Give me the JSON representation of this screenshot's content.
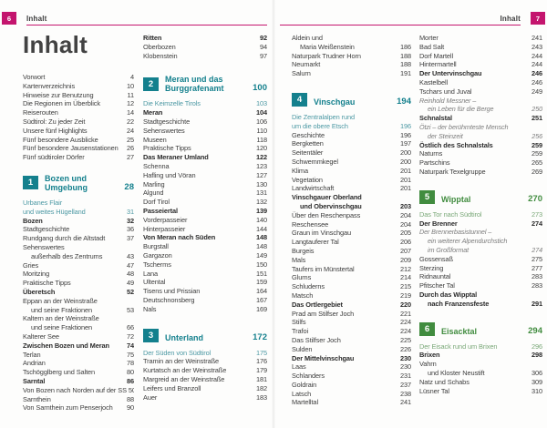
{
  "title": "Inhalt",
  "header_left": {
    "page_number": "6",
    "label": "Inhalt"
  },
  "header_right": {
    "page_number": "7",
    "label": "Inhalt"
  },
  "colors": {
    "accent_pink": "#c4156e",
    "teal": "#14808d",
    "teal_light": "#4d99a4",
    "green": "#418c3f",
    "green_light": "#7aa878",
    "text": "#3d3d3d"
  },
  "columns": {
    "l1": [
      {
        "k": "title"
      },
      {
        "k": "e",
        "t": [
          "Vorwort"
        ],
        "p": "4"
      },
      {
        "k": "e",
        "t": [
          "Kartenverzeichnis"
        ],
        "p": "10"
      },
      {
        "k": "e",
        "t": [
          "Hinweise zur Benutzung"
        ],
        "p": "11"
      },
      {
        "k": "e",
        "t": [
          "Die Regionen im Überblick"
        ],
        "p": "12"
      },
      {
        "k": "e",
        "t": [
          "Reiserouten"
        ],
        "p": "14"
      },
      {
        "k": "e",
        "t": [
          "Südtirol: Zu jeder Zeit"
        ],
        "p": "22"
      },
      {
        "k": "e",
        "t": [
          "Unsere fünf Highlights"
        ],
        "p": "24"
      },
      {
        "k": "e",
        "t": [
          "Fünf besondere Ausblicke"
        ],
        "p": "25"
      },
      {
        "k": "e",
        "t": [
          "Fünf besondere Jausenstationen"
        ],
        "p": "26"
      },
      {
        "k": "e",
        "t": [
          "Fünf südtiroler Dörfer"
        ],
        "p": "27"
      },
      {
        "k": "gap",
        "h": 13
      },
      {
        "k": "sec",
        "n": "1",
        "t": [
          "Bozen und",
          "Umgebung"
        ],
        "p": "28",
        "c": "t"
      },
      {
        "k": "e",
        "t": [
          "Urbanes Flair",
          "und weites Hügelland"
        ],
        "p": "31",
        "s": "l"
      },
      {
        "k": "e",
        "t": [
          "Bozen"
        ],
        "p": "32",
        "s": "b"
      },
      {
        "k": "e",
        "t": [
          "Stadtgeschichte"
        ],
        "p": "36"
      },
      {
        "k": "e",
        "t": [
          "Rundgang durch die Altstadt"
        ],
        "p": "37"
      },
      {
        "k": "e",
        "t": [
          "Sehenswertes",
          "außerhalb des Zentrums"
        ],
        "p": "43",
        "ind": true
      },
      {
        "k": "e",
        "t": [
          "Gries"
        ],
        "p": "47"
      },
      {
        "k": "e",
        "t": [
          "Moritzing"
        ],
        "p": "48"
      },
      {
        "k": "e",
        "t": [
          "Praktische Tipps"
        ],
        "p": "49"
      },
      {
        "k": "e",
        "t": [
          "Überetsch"
        ],
        "p": "52",
        "s": "b"
      },
      {
        "k": "e",
        "t": [
          "Eppan an der Weinstraße",
          "und seine Fraktionen"
        ],
        "p": "53",
        "ind": true
      },
      {
        "k": "e",
        "t": [
          "Kaltern an der Weinstraße",
          "und seine Fraktionen"
        ],
        "p": "66",
        "ind": true
      },
      {
        "k": "e",
        "t": [
          "Kalterer See"
        ],
        "p": "72"
      },
      {
        "k": "e",
        "t": [
          "Zwischen Bozen und Meran"
        ],
        "p": "74",
        "s": "b"
      },
      {
        "k": "e",
        "t": [
          "Terlan"
        ],
        "p": "75"
      },
      {
        "k": "e",
        "t": [
          "Andrian"
        ],
        "p": "78"
      },
      {
        "k": "e",
        "t": [
          "Tschögglberg und Salten"
        ],
        "p": "80"
      },
      {
        "k": "e",
        "t": [
          "Sarntal"
        ],
        "p": "86",
        "s": "b"
      },
      {
        "k": "e",
        "t": [
          "Von Bozen nach Norden auf der SS 508"
        ],
        "p": "87"
      },
      {
        "k": "e",
        "t": [
          "Sarnthein"
        ],
        "p": "88"
      },
      {
        "k": "e",
        "t": [
          "Von Sarnthein zum Penserjoch"
        ],
        "p": "90"
      }
    ],
    "l2": [
      {
        "k": "e",
        "t": [
          "Ritten"
        ],
        "p": "92",
        "s": "b"
      },
      {
        "k": "e",
        "t": [
          "Oberbozen"
        ],
        "p": "94"
      },
      {
        "k": "e",
        "t": [
          "Klobenstein"
        ],
        "p": "97"
      },
      {
        "k": "gap",
        "h": 16
      },
      {
        "k": "sec",
        "n": "2",
        "t": [
          "Meran und das",
          "Burggrafenamt"
        ],
        "p": "100",
        "c": "t"
      },
      {
        "k": "e",
        "t": [
          "Die Keimzelle Tirols"
        ],
        "p": "103",
        "s": "l"
      },
      {
        "k": "e",
        "t": [
          "Meran"
        ],
        "p": "104",
        "s": "b"
      },
      {
        "k": "e",
        "t": [
          "Stadtgeschichte"
        ],
        "p": "106"
      },
      {
        "k": "e",
        "t": [
          "Sehenswertes"
        ],
        "p": "110"
      },
      {
        "k": "e",
        "t": [
          "Museen"
        ],
        "p": "118"
      },
      {
        "k": "e",
        "t": [
          "Praktische Tipps"
        ],
        "p": "120"
      },
      {
        "k": "e",
        "t": [
          "Das Meraner Umland"
        ],
        "p": "122",
        "s": "b"
      },
      {
        "k": "e",
        "t": [
          "Schenna"
        ],
        "p": "123"
      },
      {
        "k": "e",
        "t": [
          "Hafling und Vöran"
        ],
        "p": "127"
      },
      {
        "k": "e",
        "t": [
          "Marling"
        ],
        "p": "130"
      },
      {
        "k": "e",
        "t": [
          "Algund"
        ],
        "p": "131"
      },
      {
        "k": "e",
        "t": [
          "Dorf Tirol"
        ],
        "p": "132"
      },
      {
        "k": "e",
        "t": [
          "Passeiertal"
        ],
        "p": "139",
        "s": "b"
      },
      {
        "k": "e",
        "t": [
          "Vorderpasseier"
        ],
        "p": "140"
      },
      {
        "k": "e",
        "t": [
          "Hinterpasseier"
        ],
        "p": "144"
      },
      {
        "k": "e",
        "t": [
          "Von Meran nach Süden"
        ],
        "p": "148",
        "s": "b"
      },
      {
        "k": "e",
        "t": [
          "Burgstall"
        ],
        "p": "148"
      },
      {
        "k": "e",
        "t": [
          "Gargazon"
        ],
        "p": "149"
      },
      {
        "k": "e",
        "t": [
          "Tscherms"
        ],
        "p": "150"
      },
      {
        "k": "e",
        "t": [
          "Lana"
        ],
        "p": "151"
      },
      {
        "k": "e",
        "t": [
          "Ultental"
        ],
        "p": "159"
      },
      {
        "k": "e",
        "t": [
          "Tisens und Prissian"
        ],
        "p": "164"
      },
      {
        "k": "e",
        "t": [
          "Deutschnonsberg"
        ],
        "p": "167"
      },
      {
        "k": "e",
        "t": [
          "Nals"
        ],
        "p": "169"
      },
      {
        "k": "gap",
        "h": 16
      },
      {
        "k": "sec",
        "n": "3",
        "t": [
          "Unterland"
        ],
        "p": "172",
        "c": "t"
      },
      {
        "k": "e",
        "t": [
          "Der Süden von Südtirol"
        ],
        "p": "175",
        "s": "l"
      },
      {
        "k": "e",
        "t": [
          "Tramin an der Weinstraße"
        ],
        "p": "176"
      },
      {
        "k": "e",
        "t": [
          "Kurtatsch an der Weinstraße"
        ],
        "p": "179"
      },
      {
        "k": "e",
        "t": [
          "Margreid an der Weinstraße"
        ],
        "p": "181"
      },
      {
        "k": "e",
        "t": [
          "Leifers und Branzoll"
        ],
        "p": "182"
      },
      {
        "k": "e",
        "t": [
          "Auer"
        ],
        "p": "183"
      }
    ],
    "r1": [
      {
        "k": "e",
        "t": [
          "Aldein und",
          "Maria Weißenstein"
        ],
        "p": "186",
        "ind": true
      },
      {
        "k": "e",
        "t": [
          "Naturpark Trudner Horn"
        ],
        "p": "188"
      },
      {
        "k": "e",
        "t": [
          "Neumarkt"
        ],
        "p": "188"
      },
      {
        "k": "e",
        "t": [
          "Salurn"
        ],
        "p": "191"
      },
      {
        "k": "gap",
        "h": 16
      },
      {
        "k": "sec",
        "n": "4",
        "t": [
          "Vinschgau"
        ],
        "p": "194",
        "c": "t"
      },
      {
        "k": "e",
        "t": [
          "Die Zentralalpen rund",
          "um die obere Etsch"
        ],
        "p": "196",
        "s": "l"
      },
      {
        "k": "e",
        "t": [
          "Geschichte"
        ],
        "p": "196"
      },
      {
        "k": "e",
        "t": [
          "Bergketten"
        ],
        "p": "197"
      },
      {
        "k": "e",
        "t": [
          "Seitentäler"
        ],
        "p": "200"
      },
      {
        "k": "e",
        "t": [
          "Schwemmkegel"
        ],
        "p": "200"
      },
      {
        "k": "e",
        "t": [
          "Klima"
        ],
        "p": "201"
      },
      {
        "k": "e",
        "t": [
          "Vegetation"
        ],
        "p": "201"
      },
      {
        "k": "e",
        "t": [
          "Landwirtschaft"
        ],
        "p": "201"
      },
      {
        "k": "e",
        "t": [
          "Vinschgauer Oberland",
          "und Obervinschgau"
        ],
        "p": "203",
        "s": "b",
        "ind": true
      },
      {
        "k": "e",
        "t": [
          "Über den Reschenpass"
        ],
        "p": "204"
      },
      {
        "k": "e",
        "t": [
          "Reschensee"
        ],
        "p": "204"
      },
      {
        "k": "e",
        "t": [
          "Graun im Vinschgau"
        ],
        "p": "205"
      },
      {
        "k": "e",
        "t": [
          "Langtauferer Tal"
        ],
        "p": "206"
      },
      {
        "k": "e",
        "t": [
          "Burgeis"
        ],
        "p": "207"
      },
      {
        "k": "e",
        "t": [
          "Mals"
        ],
        "p": "209"
      },
      {
        "k": "e",
        "t": [
          "Taufers im Münstertal"
        ],
        "p": "212"
      },
      {
        "k": "e",
        "t": [
          "Glurns"
        ],
        "p": "214"
      },
      {
        "k": "e",
        "t": [
          "Schluderns"
        ],
        "p": "215"
      },
      {
        "k": "e",
        "t": [
          "Matsch"
        ],
        "p": "219"
      },
      {
        "k": "e",
        "t": [
          "Das Ortlergebiet"
        ],
        "p": "220",
        "s": "b"
      },
      {
        "k": "e",
        "t": [
          "Prad am Stilfser Joch"
        ],
        "p": "221"
      },
      {
        "k": "e",
        "t": [
          "Stilfs"
        ],
        "p": "224"
      },
      {
        "k": "e",
        "t": [
          "Trafoi"
        ],
        "p": "224"
      },
      {
        "k": "e",
        "t": [
          "Das Stilfser Joch"
        ],
        "p": "225"
      },
      {
        "k": "e",
        "t": [
          "Sulden"
        ],
        "p": "226"
      },
      {
        "k": "e",
        "t": [
          "Der Mittelvinschgau"
        ],
        "p": "230",
        "s": "b"
      },
      {
        "k": "e",
        "t": [
          "Laas"
        ],
        "p": "230"
      },
      {
        "k": "e",
        "t": [
          "Schlanders"
        ],
        "p": "231"
      },
      {
        "k": "e",
        "t": [
          "Goldrain"
        ],
        "p": "237"
      },
      {
        "k": "e",
        "t": [
          "Latsch"
        ],
        "p": "238"
      },
      {
        "k": "e",
        "t": [
          "Martelltal"
        ],
        "p": "241"
      }
    ],
    "r2": [
      {
        "k": "e",
        "t": [
          "Morter"
        ],
        "p": "241"
      },
      {
        "k": "e",
        "t": [
          "Bad Salt"
        ],
        "p": "243"
      },
      {
        "k": "e",
        "t": [
          "Dorf Martell"
        ],
        "p": "244"
      },
      {
        "k": "e",
        "t": [
          "Hintermartell"
        ],
        "p": "244"
      },
      {
        "k": "e",
        "t": [
          "Der Untervinschgau"
        ],
        "p": "246",
        "s": "b"
      },
      {
        "k": "e",
        "t": [
          "Kastelbell"
        ],
        "p": "246"
      },
      {
        "k": "e",
        "t": [
          "Tschars und Juval"
        ],
        "p": "249"
      },
      {
        "k": "e",
        "t": [
          "Reinhold Messner –",
          "ein Leben für die Berge"
        ],
        "p": "250",
        "s": "i",
        "ind": true
      },
      {
        "k": "e",
        "t": [
          "Schnalstal"
        ],
        "p": "251",
        "s": "b"
      },
      {
        "k": "e",
        "t": [
          "Ötzi – der berühmteste Mensch",
          "der Steinzeit"
        ],
        "p": "256",
        "s": "i",
        "ind": true
      },
      {
        "k": "e",
        "t": [
          "Östlich des Schnalstals"
        ],
        "p": "259",
        "s": "b"
      },
      {
        "k": "e",
        "t": [
          "Naturns"
        ],
        "p": "259"
      },
      {
        "k": "e",
        "t": [
          "Partschins"
        ],
        "p": "265"
      },
      {
        "k": "e",
        "t": [
          "Naturpark Texelgruppe"
        ],
        "p": "269"
      },
      {
        "k": "gap",
        "h": 15
      },
      {
        "k": "sec",
        "n": "5",
        "t": [
          "Wipptal"
        ],
        "p": "270",
        "c": "g"
      },
      {
        "k": "e",
        "t": [
          "Das Tor nach Südtirol"
        ],
        "p": "273",
        "s": "l"
      },
      {
        "k": "e",
        "t": [
          "Der Brenner"
        ],
        "p": "274",
        "s": "b"
      },
      {
        "k": "e",
        "t": [
          "Der Brennerbasistunnel –",
          "ein weiterer Alpendurchstich",
          "im Großformat"
        ],
        "p": "274",
        "s": "i",
        "ind": true
      },
      {
        "k": "e",
        "t": [
          "Gossensaß"
        ],
        "p": "275"
      },
      {
        "k": "e",
        "t": [
          "Sterzing"
        ],
        "p": "277"
      },
      {
        "k": "e",
        "t": [
          "Ridnauntal"
        ],
        "p": "283"
      },
      {
        "k": "e",
        "t": [
          "Pfitscher Tal"
        ],
        "p": "283"
      },
      {
        "k": "e",
        "t": [
          "Durch das Wipptal",
          "nach Franzensfeste"
        ],
        "p": "291",
        "s": "b",
        "ind": true
      },
      {
        "k": "gap",
        "h": 15
      },
      {
        "k": "sec",
        "n": "6",
        "t": [
          "Eisacktal"
        ],
        "p": "294",
        "c": "g"
      },
      {
        "k": "e",
        "t": [
          "Der Eisack rund um Brixen"
        ],
        "p": "296",
        "s": "l"
      },
      {
        "k": "e",
        "t": [
          "Brixen"
        ],
        "p": "298",
        "s": "b"
      },
      {
        "k": "e",
        "t": [
          "Vahrn",
          "und Kloster Neustift"
        ],
        "p": "306",
        "ind": true
      },
      {
        "k": "e",
        "t": [
          "Natz und Schabs"
        ],
        "p": "309"
      },
      {
        "k": "e",
        "t": [
          "Lüsner Tal"
        ],
        "p": "310"
      }
    ]
  }
}
